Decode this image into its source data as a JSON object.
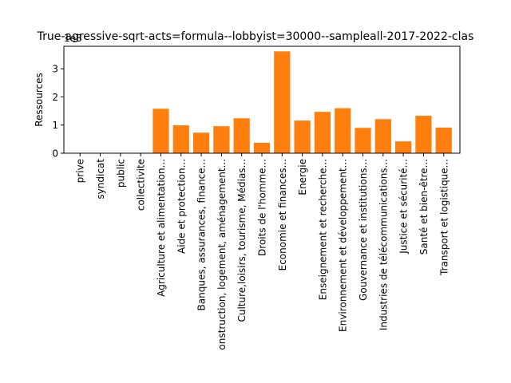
{
  "chart_data": {
    "type": "bar",
    "title": "True-agressive-sqrt-acts=formula--lobbyist=30000--sampleall-2017-2022-clas",
    "xlabel": "",
    "ylabel": "Ressources",
    "offset_text": "1e8",
    "ylim": [
      0,
      3.8
    ],
    "y_multiplier": 100000000,
    "yticks": [
      "0",
      "1",
      "2",
      "3"
    ],
    "grid": false,
    "legend": "none",
    "bar_color": "#ff7f0e",
    "categories": [
      "prive",
      "syndicat",
      "public",
      "collectivite",
      "Agriculture et alimentation...",
      "Aide et protection...",
      "Banques, assurances, finance...",
      "onstruction, logement, aménagement...",
      "Culture,loisirs, tourisme, Médias...",
      "Droits de l'homme...",
      "Economie et finances...",
      "Energie",
      "Enseignement et recherche...",
      "Environnement et développement...",
      "Gouvernance et institutions...",
      "Industries de télécommunications...",
      "Justice et sécurité...",
      "Santé et bien-être...",
      "Transport et logistique..."
    ],
    "values": [
      0,
      0,
      0,
      0,
      1.58,
      0.99,
      0.73,
      0.96,
      1.24,
      0.37,
      3.62,
      1.16,
      1.47,
      1.6,
      0.9,
      1.21,
      0.42,
      1.33,
      0.91
    ]
  }
}
